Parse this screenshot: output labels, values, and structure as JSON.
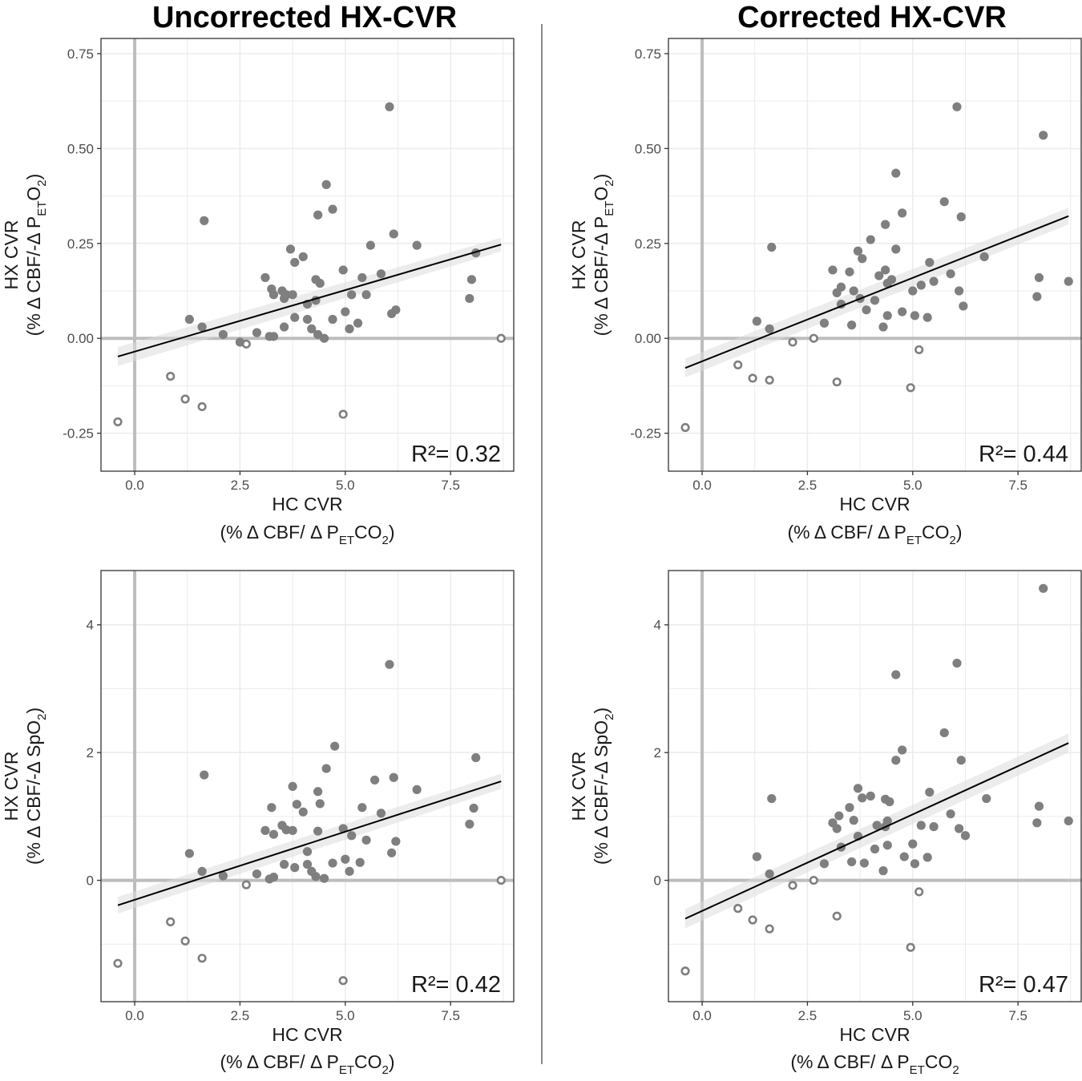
{
  "column_titles": [
    "Uncorrected HX-CVR",
    "Corrected HX-CVR"
  ],
  "colors": {
    "point_fill": "#7f7f7f",
    "point_open_stroke": "#7f7f7f",
    "zero_line": "#bdbdbd",
    "grid": "#ebebeb",
    "fit_line": "#000000",
    "band": "#dcdcdc",
    "divider": "#888888"
  },
  "chart_data": [
    {
      "type": "scatter",
      "id": "top-left",
      "column_title": "Uncorrected HX-CVR",
      "xlabel": "HC CVR",
      "xlabel_sub": {
        "pre": "(% Δ CBF/ Δ P",
        "sub": "ET",
        "post": "CO",
        "sub2": "2",
        "end": ")"
      },
      "ylabel": "HX CVR",
      "ylabel_sub": {
        "pre": "(% Δ CBF/-Δ P",
        "sub": "ET",
        "post": "O",
        "sub2": "2",
        "end": ")"
      },
      "xlim": [
        -0.8,
        9.0
      ],
      "ylim": [
        -0.35,
        0.79
      ],
      "xticks": [
        0.0,
        2.5,
        5.0,
        7.5
      ],
      "xtick_labels": [
        "0.0",
        "2.5",
        "5.0",
        "7.5"
      ],
      "yticks": [
        -0.25,
        0.0,
        0.25,
        0.5,
        0.75
      ],
      "ytick_labels": [
        "-0.25",
        "0.00",
        "0.25",
        "0.50",
        "0.75"
      ],
      "r2": "R²= 0.32",
      "fit": {
        "x": [
          -0.4,
          8.7
        ],
        "y": [
          -0.048,
          0.247
        ],
        "band": [
          0.025,
          0.018
        ]
      },
      "filled": [
        [
          1.3,
          0.05
        ],
        [
          1.6,
          0.03
        ],
        [
          1.65,
          0.31
        ],
        [
          2.1,
          0.01
        ],
        [
          2.5,
          -0.01
        ],
        [
          2.9,
          0.015
        ],
        [
          3.1,
          0.16
        ],
        [
          3.2,
          0.005
        ],
        [
          3.25,
          0.13
        ],
        [
          3.3,
          0.005
        ],
        [
          3.3,
          0.115
        ],
        [
          3.5,
          0.125
        ],
        [
          3.55,
          0.03
        ],
        [
          3.55,
          0.105
        ],
        [
          3.6,
          0.115
        ],
        [
          3.7,
          0.235
        ],
        [
          3.75,
          0.115
        ],
        [
          3.8,
          0.055
        ],
        [
          3.8,
          0.2
        ],
        [
          4.0,
          0.215
        ],
        [
          4.1,
          0.09
        ],
        [
          4.1,
          0.05
        ],
        [
          4.2,
          0.025
        ],
        [
          4.3,
          0.155
        ],
        [
          4.3,
          0.1
        ],
        [
          4.35,
          0.325
        ],
        [
          4.35,
          0.01
        ],
        [
          4.4,
          0.145
        ],
        [
          4.5,
          0.0
        ],
        [
          4.55,
          0.405
        ],
        [
          4.7,
          0.05
        ],
        [
          4.7,
          0.34
        ],
        [
          4.95,
          0.18
        ],
        [
          5.0,
          0.07
        ],
        [
          5.1,
          0.025
        ],
        [
          5.15,
          0.115
        ],
        [
          5.3,
          0.04
        ],
        [
          5.4,
          0.16
        ],
        [
          5.5,
          0.115
        ],
        [
          5.6,
          0.245
        ],
        [
          5.85,
          0.17
        ],
        [
          6.05,
          0.61
        ],
        [
          6.1,
          0.065
        ],
        [
          6.15,
          0.275
        ],
        [
          6.2,
          0.075
        ],
        [
          6.7,
          0.245
        ],
        [
          7.95,
          0.105
        ],
        [
          8.0,
          0.155
        ],
        [
          8.1,
          0.225
        ]
      ],
      "open": [
        [
          0.85,
          -0.1
        ],
        [
          1.2,
          -0.16
        ],
        [
          1.6,
          -0.18
        ],
        [
          2.65,
          -0.015
        ],
        [
          4.95,
          -0.2
        ],
        [
          8.7,
          0.0
        ],
        [
          -0.4,
          -0.22
        ]
      ]
    },
    {
      "type": "scatter",
      "id": "top-right",
      "column_title": "Corrected HX-CVR",
      "xlabel": "HC CVR",
      "xlabel_sub": {
        "pre": "(% Δ CBF/ Δ P",
        "sub": "ET",
        "post": "CO",
        "sub2": "2",
        "end": ")"
      },
      "ylabel": "HX CVR",
      "ylabel_sub": {
        "pre": "(% Δ CBF/-Δ P",
        "sub": "ET",
        "post": "O",
        "sub2": "2",
        "end": ")"
      },
      "xlim": [
        -0.8,
        9.0
      ],
      "ylim": [
        -0.35,
        0.79
      ],
      "xticks": [
        0.0,
        2.5,
        5.0,
        7.5
      ],
      "xtick_labels": [
        "0.0",
        "2.5",
        "5.0",
        "7.5"
      ],
      "yticks": [
        -0.25,
        0.0,
        0.25,
        0.5,
        0.75
      ],
      "ytick_labels": [
        "-0.25",
        "0.00",
        "0.25",
        "0.50",
        "0.75"
      ],
      "r2": "R²= 0.44",
      "fit": {
        "x": [
          -0.4,
          8.7
        ],
        "y": [
          -0.078,
          0.322
        ],
        "band": [
          0.025,
          0.022
        ]
      },
      "filled": [
        [
          1.3,
          0.045
        ],
        [
          1.6,
          0.025
        ],
        [
          1.65,
          0.24
        ],
        [
          2.9,
          0.04
        ],
        [
          3.1,
          0.18
        ],
        [
          3.2,
          0.12
        ],
        [
          3.3,
          0.09
        ],
        [
          3.3,
          0.135
        ],
        [
          3.5,
          0.175
        ],
        [
          3.55,
          0.035
        ],
        [
          3.6,
          0.125
        ],
        [
          3.7,
          0.23
        ],
        [
          3.75,
          0.105
        ],
        [
          3.8,
          0.21
        ],
        [
          3.9,
          0.075
        ],
        [
          4.0,
          0.26
        ],
        [
          4.1,
          0.1
        ],
        [
          4.2,
          0.165
        ],
        [
          4.3,
          0.03
        ],
        [
          4.35,
          0.18
        ],
        [
          4.35,
          0.3
        ],
        [
          4.4,
          0.06
        ],
        [
          4.4,
          0.145
        ],
        [
          4.5,
          0.155
        ],
        [
          4.6,
          0.235
        ],
        [
          4.6,
          0.435
        ],
        [
          4.75,
          0.07
        ],
        [
          4.75,
          0.33
        ],
        [
          5.0,
          0.125
        ],
        [
          5.05,
          0.06
        ],
        [
          5.2,
          0.14
        ],
        [
          5.35,
          0.055
        ],
        [
          5.4,
          0.2
        ],
        [
          5.5,
          0.15
        ],
        [
          5.75,
          0.36
        ],
        [
          5.9,
          0.17
        ],
        [
          6.05,
          0.61
        ],
        [
          6.1,
          0.125
        ],
        [
          6.15,
          0.32
        ],
        [
          6.2,
          0.085
        ],
        [
          6.7,
          0.215
        ],
        [
          7.95,
          0.11
        ],
        [
          8.0,
          0.16
        ],
        [
          8.1,
          0.535
        ],
        [
          8.7,
          0.15
        ]
      ],
      "open": [
        [
          0.85,
          -0.07
        ],
        [
          1.2,
          -0.105
        ],
        [
          1.6,
          -0.11
        ],
        [
          2.15,
          -0.01
        ],
        [
          2.65,
          0.0
        ],
        [
          3.2,
          -0.115
        ],
        [
          4.95,
          -0.13
        ],
        [
          5.15,
          -0.03
        ],
        [
          -0.4,
          -0.235
        ]
      ]
    },
    {
      "type": "scatter",
      "id": "bottom-left",
      "column_title": "Uncorrected HX-CVR",
      "xlabel": "HC CVR",
      "xlabel_sub": {
        "pre": "(% Δ CBF/ Δ P",
        "sub": "ET",
        "post": "CO",
        "sub2": "2",
        "end": ")"
      },
      "ylabel": "HX CVR",
      "ylabel_sub": {
        "pre": "(% Δ CBF/-Δ SpO",
        "sub": "",
        "post": "",
        "sub2": "2",
        "end": ")"
      },
      "xlim": [
        -0.8,
        9.0
      ],
      "ylim": [
        -1.9,
        4.85
      ],
      "xticks": [
        0.0,
        2.5,
        5.0,
        7.5
      ],
      "xtick_labels": [
        "0.0",
        "2.5",
        "5.0",
        "7.5"
      ],
      "yticks": [
        0,
        2,
        4
      ],
      "ytick_labels": [
        "0",
        "2",
        "4"
      ],
      "r2": "R²= 0.42",
      "fit": {
        "x": [
          -0.4,
          8.7
        ],
        "y": [
          -0.39,
          1.55
        ],
        "band": [
          0.13,
          0.12
        ]
      },
      "filled": [
        [
          1.3,
          0.42
        ],
        [
          1.6,
          0.14
        ],
        [
          1.65,
          1.65
        ],
        [
          2.1,
          0.07
        ],
        [
          2.9,
          0.1
        ],
        [
          3.1,
          0.78
        ],
        [
          3.2,
          0.02
        ],
        [
          3.25,
          1.14
        ],
        [
          3.3,
          0.05
        ],
        [
          3.3,
          0.72
        ],
        [
          3.5,
          0.86
        ],
        [
          3.55,
          0.25
        ],
        [
          3.6,
          0.79
        ],
        [
          3.75,
          1.47
        ],
        [
          3.75,
          0.78
        ],
        [
          3.8,
          0.2
        ],
        [
          3.85,
          1.19
        ],
        [
          4.0,
          1.07
        ],
        [
          4.1,
          0.45
        ],
        [
          4.1,
          0.25
        ],
        [
          4.2,
          0.14
        ],
        [
          4.3,
          0.06
        ],
        [
          4.35,
          0.77
        ],
        [
          4.35,
          1.39
        ],
        [
          4.4,
          1.2
        ],
        [
          4.5,
          0.03
        ],
        [
          4.55,
          1.75
        ],
        [
          4.7,
          0.27
        ],
        [
          4.75,
          2.1
        ],
        [
          4.95,
          0.81
        ],
        [
          5.0,
          0.33
        ],
        [
          5.1,
          0.14
        ],
        [
          5.15,
          0.7
        ],
        [
          5.35,
          0.28
        ],
        [
          5.4,
          1.14
        ],
        [
          5.5,
          0.63
        ],
        [
          5.7,
          1.57
        ],
        [
          5.85,
          1.05
        ],
        [
          6.05,
          3.38
        ],
        [
          6.1,
          0.43
        ],
        [
          6.15,
          1.61
        ],
        [
          6.2,
          0.61
        ],
        [
          6.7,
          1.42
        ],
        [
          7.95,
          0.88
        ],
        [
          8.05,
          1.13
        ],
        [
          8.1,
          1.92
        ]
      ],
      "open": [
        [
          0.85,
          -0.65
        ],
        [
          1.2,
          -0.95
        ],
        [
          1.6,
          -1.22
        ],
        [
          2.65,
          -0.07
        ],
        [
          4.95,
          -1.57
        ],
        [
          8.7,
          0.0
        ],
        [
          -0.4,
          -1.3
        ]
      ]
    },
    {
      "type": "scatter",
      "id": "bottom-right",
      "column_title": "Corrected HX-CVR",
      "xlabel": "HC CVR",
      "xlabel_sub": {
        "pre": "(% Δ CBF/ Δ P",
        "sub": "ET",
        "post": "CO",
        "sub2": "2",
        "end": ""
      },
      "ylabel": "HX CVR",
      "ylabel_sub": {
        "pre": "(% Δ CBF/-Δ SpO",
        "sub": "",
        "post": "",
        "sub2": "2",
        "end": ")"
      },
      "xlim": [
        -0.8,
        9.0
      ],
      "ylim": [
        -1.9,
        4.85
      ],
      "xticks": [
        0.0,
        2.5,
        5.0,
        7.5
      ],
      "xtick_labels": [
        "0.0",
        "2.5",
        "5.0",
        "7.5"
      ],
      "yticks": [
        0,
        2,
        4
      ],
      "ytick_labels": [
        "0",
        "2",
        "4"
      ],
      "r2": "R²= 0.47",
      "fit": {
        "x": [
          -0.4,
          8.7
        ],
        "y": [
          -0.6,
          2.15
        ],
        "band": [
          0.15,
          0.15
        ]
      },
      "filled": [
        [
          1.3,
          0.37
        ],
        [
          1.6,
          0.1
        ],
        [
          1.65,
          1.28
        ],
        [
          2.9,
          0.26
        ],
        [
          3.1,
          0.9
        ],
        [
          3.2,
          0.81
        ],
        [
          3.25,
          1.01
        ],
        [
          3.3,
          0.52
        ],
        [
          3.5,
          1.14
        ],
        [
          3.55,
          0.29
        ],
        [
          3.6,
          0.94
        ],
        [
          3.7,
          1.44
        ],
        [
          3.7,
          0.69
        ],
        [
          3.8,
          1.29
        ],
        [
          3.85,
          0.27
        ],
        [
          4.0,
          1.32
        ],
        [
          4.1,
          0.49
        ],
        [
          4.15,
          0.86
        ],
        [
          4.3,
          0.15
        ],
        [
          4.35,
          0.84
        ],
        [
          4.35,
          1.27
        ],
        [
          4.4,
          0.55
        ],
        [
          4.4,
          0.93
        ],
        [
          4.45,
          1.23
        ],
        [
          4.6,
          1.88
        ],
        [
          4.6,
          3.22
        ],
        [
          4.75,
          2.04
        ],
        [
          4.8,
          0.37
        ],
        [
          5.0,
          0.57
        ],
        [
          5.05,
          0.26
        ],
        [
          5.2,
          0.86
        ],
        [
          5.35,
          0.36
        ],
        [
          5.4,
          1.38
        ],
        [
          5.5,
          0.84
        ],
        [
          5.75,
          2.31
        ],
        [
          5.9,
          1.04
        ],
        [
          6.05,
          3.4
        ],
        [
          6.1,
          0.81
        ],
        [
          6.15,
          1.88
        ],
        [
          6.25,
          0.7
        ],
        [
          6.75,
          1.28
        ],
        [
          7.95,
          0.9
        ],
        [
          8.0,
          1.16
        ],
        [
          8.1,
          4.57
        ],
        [
          8.7,
          0.93
        ]
      ],
      "open": [
        [
          0.85,
          -0.44
        ],
        [
          1.2,
          -0.62
        ],
        [
          1.6,
          -0.76
        ],
        [
          2.15,
          -0.08
        ],
        [
          2.65,
          0.0
        ],
        [
          3.2,
          -0.56
        ],
        [
          4.95,
          -1.05
        ],
        [
          5.15,
          -0.18
        ],
        [
          -0.4,
          -1.42
        ]
      ]
    }
  ]
}
